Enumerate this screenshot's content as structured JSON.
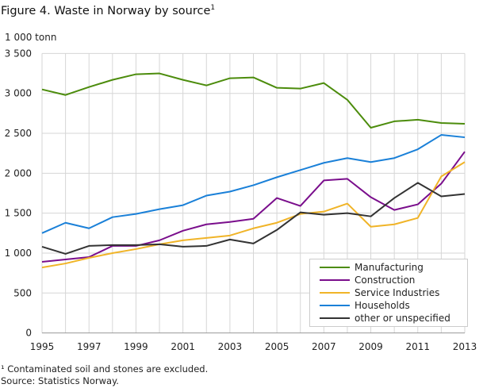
{
  "title": "Figure 4. Waste in Norway by source",
  "title_sup": "1",
  "footnotes": [
    "¹ Contaminated soil and stones are excluded.",
    "Source: Statistics Norway."
  ],
  "chart_data": {
    "type": "line",
    "ylabel": "1 000 tonn",
    "ylim": [
      0,
      3500
    ],
    "yticks": [
      "0",
      "500",
      "1 000",
      "1 500",
      "2 000",
      "2 500",
      "3 000",
      "3 500"
    ],
    "xticks": [
      "1995",
      "1997",
      "1999",
      "2001",
      "2003",
      "2005",
      "2007",
      "2009",
      "2011",
      "2013"
    ],
    "grid": true,
    "legend": "bottom-right",
    "x": [
      1995,
      1996,
      1997,
      1998,
      1999,
      2000,
      2001,
      2002,
      2003,
      2004,
      2005,
      2006,
      2007,
      2008,
      2009,
      2010,
      2011,
      2012,
      2013
    ],
    "series": [
      {
        "name": "Manufacturing",
        "color": "#4c8c0c",
        "values": [
          3050,
          2980,
          3080,
          3170,
          3240,
          3250,
          3170,
          3100,
          3190,
          3200,
          3070,
          3060,
          3130,
          2920,
          2570,
          2650,
          2670,
          2630,
          2620
        ]
      },
      {
        "name": "Construction",
        "color": "#7a0e8c",
        "values": [
          890,
          920,
          950,
          1090,
          1090,
          1160,
          1280,
          1360,
          1390,
          1430,
          1690,
          1590,
          1910,
          1930,
          1700,
          1540,
          1610,
          1870,
          2270
        ]
      },
      {
        "name": "Service Industries",
        "color": "#f0b428",
        "values": [
          820,
          870,
          940,
          1000,
          1050,
          1110,
          1160,
          1190,
          1220,
          1310,
          1380,
          1490,
          1520,
          1620,
          1330,
          1360,
          1440,
          1960,
          2140
        ]
      },
      {
        "name": "Households",
        "color": "#1a80d8",
        "values": [
          1250,
          1380,
          1310,
          1450,
          1490,
          1550,
          1600,
          1720,
          1770,
          1850,
          1950,
          2040,
          2130,
          2190,
          2140,
          2190,
          2300,
          2480,
          2450
        ]
      },
      {
        "name": "other or unspecified",
        "color": "#333333",
        "values": [
          1080,
          990,
          1090,
          1100,
          1100,
          1110,
          1080,
          1090,
          1170,
          1120,
          1290,
          1510,
          1480,
          1500,
          1460,
          1690,
          1880,
          1710,
          1740
        ]
      }
    ]
  }
}
